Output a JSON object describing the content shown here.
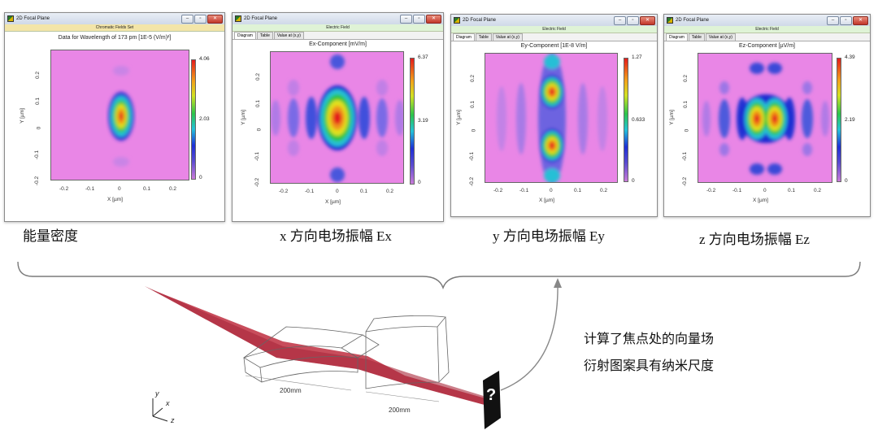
{
  "windows": [
    {
      "title": "2D Focal Plane",
      "subtitle": "Chromatic Fields Set",
      "tabs": [],
      "plot_title": "Data for Wavelength of 173 pm  [1E-5 (V/m)²]",
      "x_label": "X [µm]",
      "y_label": "Y [µm]",
      "x_ticks": [
        "-0.2",
        "-0.1",
        "0",
        "0.1",
        "0.2"
      ],
      "y_ticks": [
        "0.2",
        "0.1",
        "0",
        "-0.1",
        "-0.2"
      ],
      "colorbar": [
        "4.06",
        "2.03",
        "0"
      ]
    },
    {
      "title": "2D Focal Plane",
      "subtitle": "Electric Field",
      "tabs": [
        "Diagram",
        "Table",
        "Value at (x,y)"
      ],
      "plot_title": "Ex-Component  [mV/m]",
      "x_label": "X [µm]",
      "y_label": "Y [µm]",
      "x_ticks": [
        "-0.2",
        "-0.1",
        "0",
        "0.1",
        "0.2"
      ],
      "y_ticks": [
        "0.2",
        "0.1",
        "0",
        "-0.1",
        "-0.2"
      ],
      "colorbar": [
        "6.37",
        "3.19",
        "0"
      ]
    },
    {
      "title": "2D Focal Plane",
      "subtitle": "Electric Field",
      "tabs": [
        "Diagram",
        "Table",
        "Value at (x,y)"
      ],
      "plot_title": "Ey-Component  [1E-8 V/m]",
      "x_label": "X [µm]",
      "y_label": "Y [µm]",
      "x_ticks": [
        "-0.2",
        "-0.1",
        "0",
        "0.1",
        "0.2"
      ],
      "y_ticks": [
        "0.2",
        "0.1",
        "0",
        "-0.1",
        "-0.2"
      ],
      "colorbar": [
        "1.27",
        "0.633",
        "0"
      ]
    },
    {
      "title": "2D Focal Plane",
      "subtitle": "Electric Field",
      "tabs": [
        "Diagram",
        "Table",
        "Value at (x,y)"
      ],
      "plot_title": "Ez-Component  [µV/m]",
      "x_label": "X [µm]",
      "y_label": "Y [µm]",
      "x_ticks": [
        "-0.2",
        "-0.1",
        "0",
        "0.1",
        "0.2"
      ],
      "y_ticks": [
        "0.2",
        "0.1",
        "0",
        "-0.1",
        "-0.2"
      ],
      "colorbar": [
        "4.39",
        "2.19",
        "0"
      ]
    }
  ],
  "captions": [
    "能量密度",
    "x 方向电场振幅 Ex",
    "y 方向电场振幅 Ey",
    "z 方向电场振幅 Ez"
  ],
  "note": {
    "line1": "计算了焦点处的向量场",
    "line2": "衍射图案具有纳米尺度"
  },
  "diagram": {
    "dim_label_1": "200mm",
    "dim_label_2": "200mm",
    "axis_y": "y",
    "axis_x": "x",
    "axis_z": "z",
    "detector_symbol": "?"
  },
  "colors": {
    "beam": "#c23a4a",
    "background_field": "#e986e6",
    "titlebar": "#dbe3ef"
  },
  "window_controls": [
    "minimize-icon",
    "maximize-icon",
    "close-icon"
  ]
}
